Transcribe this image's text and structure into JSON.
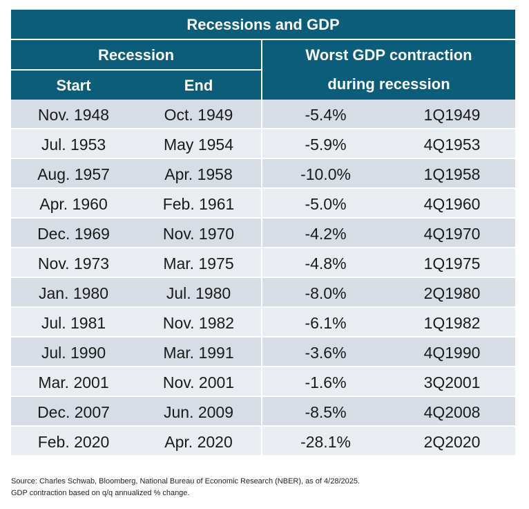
{
  "chart_data": {
    "type": "table",
    "title": "Recessions and GDP",
    "group_headers": [
      "Recession",
      "Worst GDP contraction during recession"
    ],
    "columns": [
      "Start",
      "End"
    ],
    "rows": [
      [
        "Nov. 1948",
        "Oct. 1949",
        "-5.4%",
        "1Q1949"
      ],
      [
        "Jul. 1953",
        "May 1954",
        "-5.9%",
        "4Q1953"
      ],
      [
        "Aug. 1957",
        "Apr. 1958",
        "-10.0%",
        "1Q1958"
      ],
      [
        "Apr. 1960",
        "Feb. 1961",
        "-5.0%",
        "4Q1960"
      ],
      [
        "Dec. 1969",
        "Nov. 1970",
        "-4.2%",
        "4Q1970"
      ],
      [
        "Nov. 1973",
        "Mar. 1975",
        "-4.8%",
        "1Q1975"
      ],
      [
        "Jan. 1980",
        "Jul. 1980",
        "-8.0%",
        "2Q1980"
      ],
      [
        "Jul. 1981",
        "Nov. 1982",
        "-6.1%",
        "1Q1982"
      ],
      [
        "Jul. 1990",
        "Mar. 1991",
        "-3.6%",
        "4Q1990"
      ],
      [
        "Mar. 2001",
        "Nov. 2001",
        "-1.6%",
        "3Q2001"
      ],
      [
        "Dec. 2007",
        "Jun. 2009",
        "-8.5%",
        "4Q2008"
      ],
      [
        "Feb. 2020",
        "Apr. 2020",
        "-28.1%",
        "2Q2020"
      ]
    ],
    "header_color": "#0b5d7a",
    "row_colors": [
      "#d6dde4",
      "#e9edf1"
    ]
  },
  "footnotes": [
    "Source: Charles Schwab, Bloomberg, National Bureau of Economic Research (NBER), as of 4/28/2025.",
    "GDP contraction based on q/q annualized % change."
  ]
}
